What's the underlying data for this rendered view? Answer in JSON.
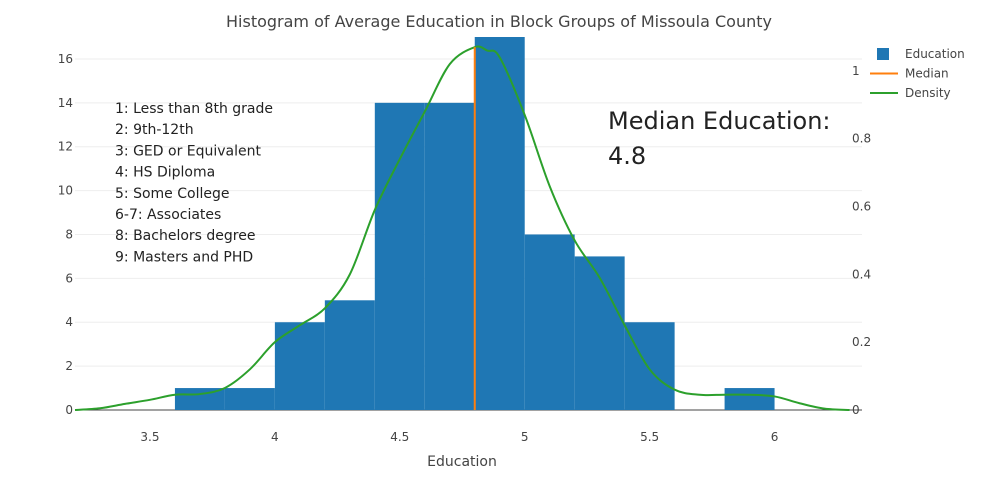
{
  "chart_data": {
    "type": "histogram",
    "title": "Histogram of Average Education in Block Groups of Missoula County",
    "xlabel": "Education",
    "ylabel": "",
    "xlim": [
      3.2,
      6.35
    ],
    "ylim": [
      0,
      17
    ],
    "y2lim": [
      0,
      1.1
    ],
    "x_ticks": [
      "3.5",
      "4",
      "4.5",
      "5",
      "5.5",
      "6"
    ],
    "y_ticks": [
      "0",
      "2",
      "4",
      "6",
      "8",
      "10",
      "12",
      "14",
      "16"
    ],
    "y2_ticks": [
      "0",
      "0.2",
      "0.4",
      "0.6",
      "0.8",
      "1"
    ],
    "bins": [
      {
        "x0": 3.6,
        "x1": 3.8,
        "count": 1
      },
      {
        "x0": 3.8,
        "x1": 4.0,
        "count": 1
      },
      {
        "x0": 4.0,
        "x1": 4.2,
        "count": 4
      },
      {
        "x0": 4.2,
        "x1": 4.4,
        "count": 5
      },
      {
        "x0": 4.4,
        "x1": 4.6,
        "count": 14
      },
      {
        "x0": 4.6,
        "x1": 4.8,
        "count": 14
      },
      {
        "x0": 4.8,
        "x1": 5.0,
        "count": 17
      },
      {
        "x0": 5.0,
        "x1": 5.2,
        "count": 8
      },
      {
        "x0": 5.2,
        "x1": 5.4,
        "count": 7
      },
      {
        "x0": 5.4,
        "x1": 5.6,
        "count": 4
      },
      {
        "x0": 5.8,
        "x1": 6.0,
        "count": 1
      }
    ],
    "median": 4.8,
    "density": {
      "x": [
        3.2,
        3.3,
        3.4,
        3.5,
        3.6,
        3.7,
        3.8,
        3.9,
        4.0,
        4.1,
        4.2,
        4.3,
        4.4,
        4.5,
        4.6,
        4.7,
        4.8,
        4.85,
        4.9,
        5.0,
        5.1,
        5.2,
        5.3,
        5.4,
        5.5,
        5.6,
        5.7,
        5.8,
        5.9,
        6.0,
        6.1,
        6.2,
        6.3
      ],
      "y": [
        0.0,
        0.005,
        0.018,
        0.03,
        0.045,
        0.047,
        0.065,
        0.12,
        0.2,
        0.25,
        0.3,
        0.4,
        0.59,
        0.74,
        0.88,
        1.02,
        1.07,
        1.06,
        1.04,
        0.87,
        0.66,
        0.5,
        0.39,
        0.25,
        0.12,
        0.06,
        0.045,
        0.045,
        0.045,
        0.04,
        0.02,
        0.004,
        0.0
      ]
    },
    "legend": {
      "position": "top-right",
      "items": [
        {
          "name": "Education",
          "kind": "bar",
          "color": "#1f77b4"
        },
        {
          "name": "Median",
          "kind": "line",
          "color": "#ff7f0e"
        },
        {
          "name": "Density",
          "kind": "line",
          "color": "#2ca02c"
        }
      ]
    },
    "annotations": {
      "codes": [
        "1: Less than 8th grade",
        "2: 9th-12th",
        "3: GED or Equivalent",
        "4: HS Diploma",
        "5: Some College",
        "6-7: Associates",
        "8: Bachelors degree",
        "9: Masters and PHD"
      ],
      "median_label_line1": "Median Education:",
      "median_label_line2": "4.8"
    },
    "colors": {
      "bar": "#1f77b4",
      "median": "#ff7f0e",
      "density": "#2ca02c"
    }
  }
}
